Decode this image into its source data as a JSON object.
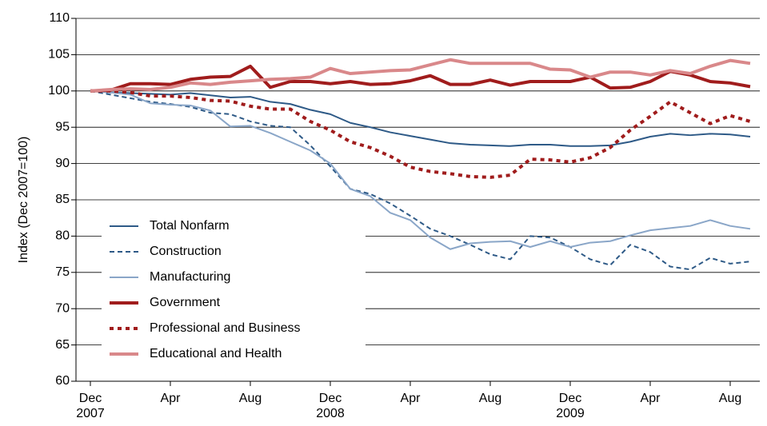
{
  "chart_data": {
    "type": "line",
    "y_label": "Index (Dec 2007=100)",
    "categories": [
      "Dec 2007",
      null,
      null,
      null,
      "Apr",
      null,
      null,
      null,
      "Aug",
      null,
      null,
      null,
      "Dec 2008",
      null,
      null,
      null,
      "Apr",
      null,
      null,
      null,
      "Aug",
      null,
      null,
      null,
      "Dec 2009",
      null,
      null,
      null,
      "Apr",
      null,
      null,
      null,
      "Aug",
      null
    ],
    "ylim": [
      60,
      110
    ],
    "yticks": [
      60,
      65,
      70,
      75,
      80,
      85,
      90,
      95,
      100,
      105,
      110
    ],
    "grid": true,
    "legend": "left",
    "series": [
      {
        "name": "Total Nonfarm",
        "color": "#2e5a87",
        "style": "solid",
        "weight": "normal",
        "values": [
          100,
          99.8,
          99.7,
          99.6,
          99.5,
          99.7,
          99.4,
          99.1,
          99.2,
          98.5,
          98.2,
          97.4,
          96.8,
          95.6,
          95,
          94.3,
          93.8,
          93.3,
          92.8,
          92.6,
          92.5,
          92.4,
          92.6,
          92.6,
          92.4,
          92.4,
          92.5,
          93,
          93.7,
          94.1,
          93.9,
          94.1,
          94,
          93.7
        ]
      },
      {
        "name": "Construction",
        "color": "#2e5a87",
        "style": "dashed",
        "weight": "normal",
        "values": [
          100,
          99.5,
          99,
          98.5,
          98.2,
          97.8,
          97,
          96.8,
          95.8,
          95.2,
          95,
          92.5,
          89.6,
          86.5,
          85.8,
          84.5,
          82.8,
          81,
          80,
          78.8,
          77.5,
          76.8,
          80,
          79.8,
          78.5,
          76.8,
          76,
          78.8,
          77.8,
          75.8,
          75.4,
          77,
          76.2,
          76.5
        ]
      },
      {
        "name": "Manufacturing",
        "color": "#8aa6c8",
        "style": "solid",
        "weight": "normal",
        "values": [
          100,
          99.8,
          99.5,
          98.3,
          98.1,
          98,
          97.3,
          95.1,
          95.2,
          94.2,
          93,
          91.8,
          90,
          86.5,
          85.5,
          83.2,
          82.2,
          79.8,
          78.2,
          79,
          79.2,
          79.3,
          78.5,
          79.3,
          78.5,
          79.1,
          79.3,
          80.1,
          80.8,
          81.1,
          81.4,
          82.2,
          81.4,
          81
        ]
      },
      {
        "name": "Government",
        "color": "#a01c1c",
        "style": "solid",
        "weight": "thick",
        "values": [
          100,
          100.1,
          101,
          101,
          100.9,
          101.6,
          101.9,
          102,
          103.4,
          100.5,
          101.3,
          101.3,
          101,
          101.3,
          100.9,
          101,
          101.4,
          102.1,
          100.9,
          100.9,
          101.5,
          100.8,
          101.3,
          101.3,
          101.3,
          101.9,
          100.4,
          100.5,
          101.3,
          102.7,
          102.2,
          101.3,
          101.1,
          100.6
        ]
      },
      {
        "name": "Professional and Business",
        "color": "#a01c1c",
        "style": "dotted",
        "weight": "thick",
        "values": [
          100,
          100,
          99.8,
          99.3,
          99.3,
          99.1,
          98.7,
          98.6,
          97.9,
          97.5,
          97.5,
          95.8,
          94.6,
          93,
          92.2,
          91,
          89.5,
          88.9,
          88.6,
          88.2,
          88.1,
          88.4,
          90.6,
          90.5,
          90.2,
          90.8,
          92.2,
          94.6,
          96.5,
          98.5,
          97,
          95.5,
          96.6,
          95.8
        ]
      },
      {
        "name": "Educational and Health",
        "color": "#d9888a",
        "style": "solid",
        "weight": "thick",
        "values": [
          100,
          100.2,
          100.3,
          100.2,
          100.5,
          101.1,
          100.9,
          101.2,
          101.4,
          101.6,
          101.7,
          101.9,
          103.1,
          102.4,
          102.6,
          102.8,
          102.9,
          103.6,
          104.3,
          103.8,
          103.8,
          103.8,
          103.8,
          103,
          102.9,
          101.9,
          102.6,
          102.6,
          102.2,
          102.8,
          102.4,
          103.4,
          104.2,
          103.8
        ]
      }
    ]
  }
}
